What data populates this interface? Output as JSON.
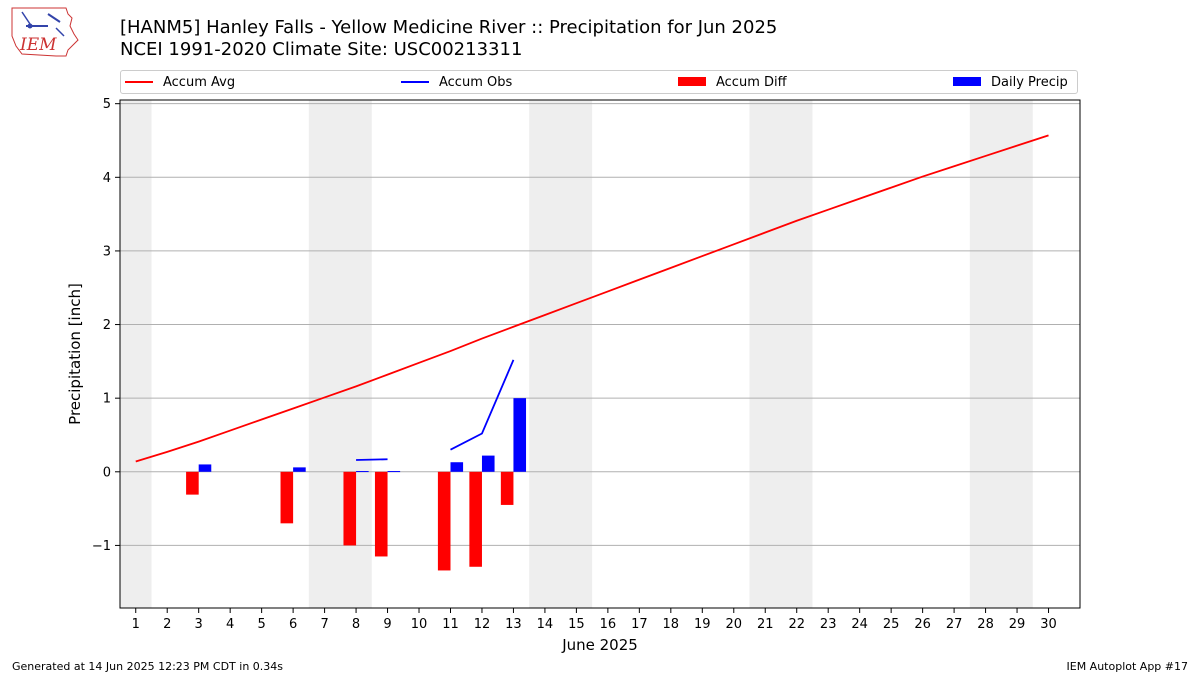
{
  "logo_text": "IEM",
  "title_line1": "[HANM5] Hanley Falls - Yellow Medicine River :: Precipitation for Jun 2025",
  "title_line2": "NCEI 1991-2020 Climate Site: USC00213311",
  "footer_left": "Generated at 14 Jun 2025 12:23 PM CDT in 0.34s",
  "footer_right": "IEM Autoplot App #17",
  "colors": {
    "avg": "#ff0000",
    "obs": "#0000ff",
    "diff": "#ff0000",
    "daily": "#0000ff",
    "weekend": "#eeeeee",
    "grid": "#b0b0b0"
  },
  "chart_data": {
    "type": "bar",
    "title": "[HANM5] Hanley Falls - Yellow Medicine River :: Precipitation for Jun 2025",
    "xlabel": "June 2025",
    "ylabel": "Precipitation [inch]",
    "xlim": [
      0.5,
      31.0
    ],
    "ylim": [
      -1.85,
      5.05
    ],
    "yticks": [
      -1,
      0,
      1,
      2,
      3,
      4,
      5
    ],
    "ytick_labels": [
      "−1",
      "0",
      "1",
      "2",
      "3",
      "4",
      "5"
    ],
    "days": [
      1,
      2,
      3,
      4,
      5,
      6,
      7,
      8,
      9,
      10,
      11,
      12,
      13,
      14,
      15,
      16,
      17,
      18,
      19,
      20,
      21,
      22,
      23,
      24,
      25,
      26,
      27,
      28,
      29,
      30
    ],
    "weekend_spans": [
      [
        0.5,
        1.5
      ],
      [
        6.5,
        8.5
      ],
      [
        13.5,
        15.5
      ],
      [
        20.5,
        22.5
      ],
      [
        27.5,
        29.5
      ]
    ],
    "legend": [
      {
        "label": "Accum Avg",
        "kind": "line",
        "color": "#ff0000"
      },
      {
        "label": "Accum Obs",
        "kind": "line",
        "color": "#0000ff"
      },
      {
        "label": "Accum Diff",
        "kind": "box",
        "color": "#ff0000"
      },
      {
        "label": "Daily Precip",
        "kind": "box",
        "color": "#0000ff"
      }
    ],
    "series": [
      {
        "name": "Accum Avg",
        "type": "line",
        "days": [
          1,
          2,
          3,
          4,
          5,
          6,
          7,
          8,
          9,
          10,
          11,
          12,
          13,
          14,
          15,
          16,
          17,
          18,
          19,
          20,
          21,
          22,
          23,
          24,
          25,
          26,
          27,
          28,
          29,
          30
        ],
        "values": [
          0.14,
          0.27,
          0.41,
          0.56,
          0.71,
          0.86,
          1.01,
          1.16,
          1.32,
          1.48,
          1.64,
          1.81,
          1.97,
          2.13,
          2.29,
          2.45,
          2.61,
          2.77,
          2.93,
          3.09,
          3.25,
          3.41,
          3.56,
          3.71,
          3.86,
          4.01,
          4.15,
          4.29,
          4.43,
          4.57
        ]
      },
      {
        "name": "Accum Obs",
        "type": "line-segments",
        "segments": [
          {
            "days": [
              8,
              9
            ],
            "values": [
              0.16,
              0.17
            ]
          },
          {
            "days": [
              11,
              12,
              13
            ],
            "values": [
              0.3,
              0.52,
              1.52
            ]
          }
        ]
      },
      {
        "name": "Accum Diff",
        "type": "bar",
        "days": [
          3,
          6,
          8,
          9,
          11,
          12,
          13
        ],
        "values": [
          -0.31,
          -0.7,
          -1.0,
          -1.15,
          -1.34,
          -1.29,
          -0.45
        ]
      },
      {
        "name": "Daily Precip",
        "type": "bar",
        "days": [
          3,
          6,
          8,
          9,
          11,
          12,
          13
        ],
        "values": [
          0.1,
          0.06,
          0.01,
          0.01,
          0.13,
          0.22,
          1.0
        ]
      }
    ]
  }
}
